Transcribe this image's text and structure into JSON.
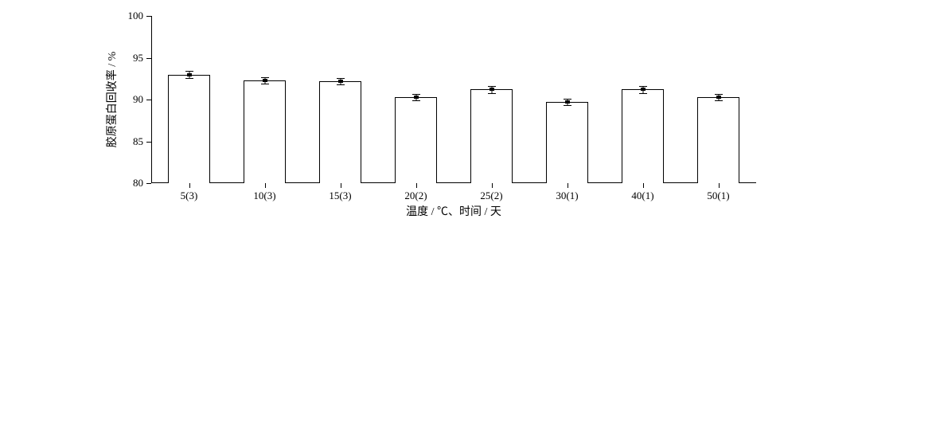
{
  "chart": {
    "type": "bar",
    "background_color": "#ffffff",
    "bar_fill": "#ffffff",
    "bar_border": "#000000",
    "axis_color": "#000000",
    "text_color": "#000000",
    "font_family": "SimSun",
    "label_fontsize": 14,
    "tick_fontsize": 13,
    "y_axis": {
      "label": "胶原蛋白回收率 / %",
      "min": 80,
      "max": 100,
      "tick_step": 5,
      "ticks": [
        80,
        85,
        90,
        95,
        100
      ]
    },
    "x_axis": {
      "label": "温度 / ℃、时间 / 天"
    },
    "categories": [
      "5(3)",
      "10(3)",
      "15(3)",
      "20(2)",
      "25(2)",
      "30(1)",
      "40(1)",
      "50(1)"
    ],
    "values": [
      93.0,
      92.3,
      92.2,
      90.3,
      91.2,
      89.7,
      91.2,
      90.3
    ],
    "errors": [
      0.4,
      0.4,
      0.4,
      0.4,
      0.4,
      0.4,
      0.4,
      0.4
    ],
    "bar_width": 0.55,
    "error_cap_width": 10
  }
}
